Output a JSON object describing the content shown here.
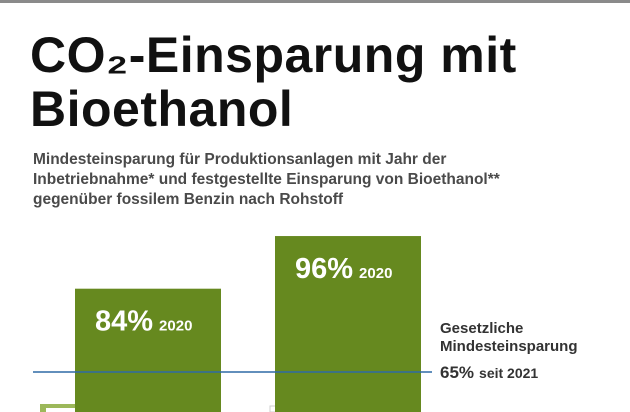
{
  "chart_data": {
    "type": "bar",
    "title": [
      "CO₂-Einsparung mit",
      "Bioethanol"
    ],
    "subtitle": [
      "Mindesteinsparung für Produktionsanlagen mit Jahr der",
      "Inbetriebnahme* und festgestellte Einsparung von Bioethanol**",
      "gegenüber fossilem Benzin nach Rohstoff"
    ],
    "values": [
      84,
      96
    ],
    "value_labels": [
      "84%",
      "96%"
    ],
    "years": [
      "2020",
      "2020"
    ],
    "color": "#66891f",
    "reference_line": {
      "value": 65,
      "label": [
        "Gesetzliche",
        "Mindesteinsparung"
      ],
      "value_label": "65%",
      "note": "seit 2021",
      "color": "#2e6aa6"
    }
  }
}
